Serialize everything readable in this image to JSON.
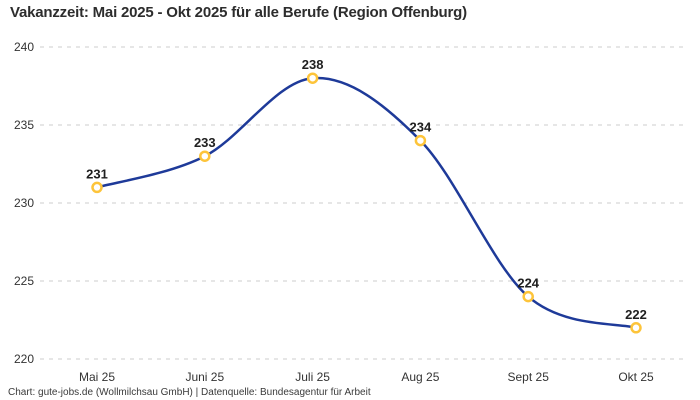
{
  "title": "Vakanzzeit: Mai 2025 - Okt 2025 für alle Berufe (Region Offenburg)",
  "footer": "Chart: gute-jobs.de (Wollmilchsau GmbH) | Datenquelle: Bundesagentur für Arbeit",
  "chart_data": {
    "type": "line",
    "categories": [
      "Mai 25",
      "Juni 25",
      "Juli 25",
      "Aug 25",
      "Sept 25",
      "Okt 25"
    ],
    "values": [
      231,
      233,
      238,
      234,
      224,
      222
    ],
    "title": "Vakanzzeit: Mai 2025 - Okt 2025 für alle Berufe (Region Offenburg)",
    "xlabel": "",
    "ylabel": "",
    "ylim": [
      220,
      240
    ],
    "yticks": [
      240,
      235,
      230,
      225,
      220
    ],
    "grid": "dashed horizontal",
    "legend": "none",
    "smooth": true,
    "colors": {
      "line": "#1e3a99",
      "marker_stroke": "#fdc43a",
      "marker_fill": "#ffffff",
      "grid": "#cccccc",
      "tick_text": "#333333",
      "value_text": "#1f1f1f"
    }
  }
}
